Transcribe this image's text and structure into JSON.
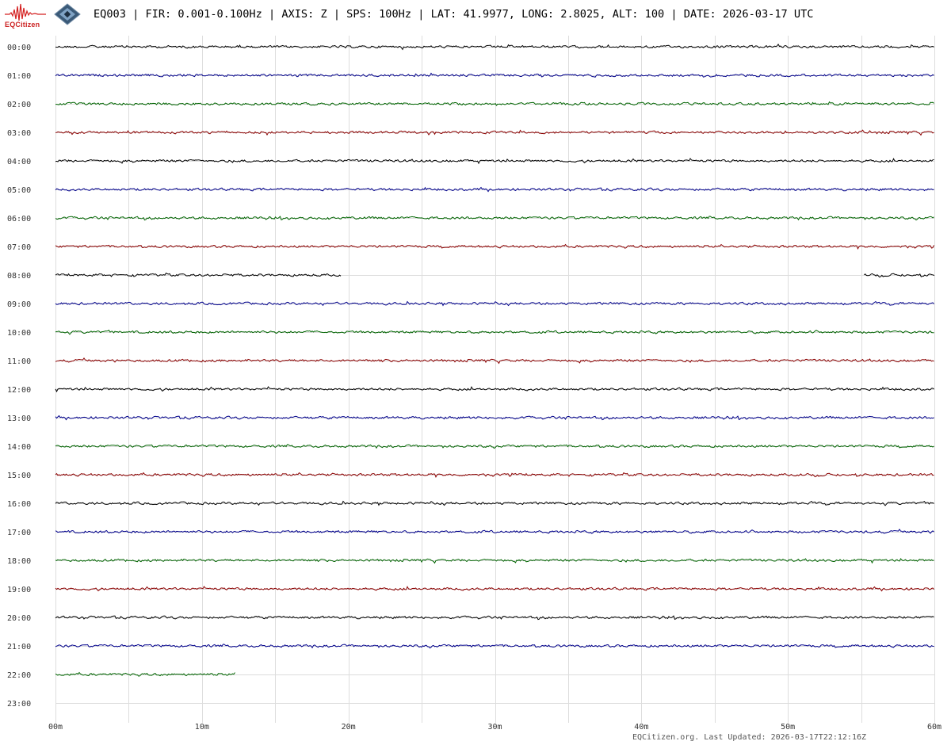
{
  "header": {
    "logo_text": "EQCitizen",
    "title": "EQ003 | FIR: 0.001-0.100Hz | AXIS: Z | SPS: 100Hz | LAT: 41.9977, LONG: 2.8025, ALT: 100 | DATE: 2026-03-17 UTC"
  },
  "footer": {
    "text": "EQCitizen.org. Last Updated: 2026-03-17T22:12:16Z"
  },
  "colors": {
    "cycle": [
      "#000000",
      "#00008b",
      "#006400",
      "#8b0000"
    ],
    "grid": "#dddddd",
    "label": "#333333"
  },
  "chart_data": {
    "type": "line",
    "description_kind": "helicorder",
    "x_ticks": [
      "00m",
      "10m",
      "20m",
      "30m",
      "40m",
      "50m",
      "60m"
    ],
    "xlim": [
      0,
      60
    ],
    "grid": true,
    "rows": [
      {
        "label": "00:00",
        "segments": [
          [
            0,
            60
          ]
        ]
      },
      {
        "label": "01:00",
        "segments": [
          [
            0,
            60
          ]
        ]
      },
      {
        "label": "02:00",
        "segments": [
          [
            0,
            60
          ]
        ]
      },
      {
        "label": "03:00",
        "segments": [
          [
            0,
            60
          ]
        ]
      },
      {
        "label": "04:00",
        "segments": [
          [
            0,
            60
          ]
        ]
      },
      {
        "label": "05:00",
        "segments": [
          [
            0,
            60
          ]
        ]
      },
      {
        "label": "06:00",
        "segments": [
          [
            0,
            60
          ]
        ]
      },
      {
        "label": "07:00",
        "segments": [
          [
            0,
            60
          ]
        ]
      },
      {
        "label": "08:00",
        "segments": [
          [
            0,
            19.5
          ],
          [
            55.2,
            60
          ]
        ]
      },
      {
        "label": "09:00",
        "segments": [
          [
            0,
            60
          ]
        ]
      },
      {
        "label": "10:00",
        "segments": [
          [
            0,
            60
          ]
        ]
      },
      {
        "label": "11:00",
        "segments": [
          [
            0,
            60
          ]
        ]
      },
      {
        "label": "12:00",
        "segments": [
          [
            0,
            60
          ]
        ]
      },
      {
        "label": "13:00",
        "segments": [
          [
            0,
            60
          ]
        ]
      },
      {
        "label": "14:00",
        "segments": [
          [
            0,
            60
          ]
        ]
      },
      {
        "label": "15:00",
        "segments": [
          [
            0,
            60
          ]
        ]
      },
      {
        "label": "16:00",
        "segments": [
          [
            0,
            60
          ]
        ]
      },
      {
        "label": "17:00",
        "segments": [
          [
            0,
            60
          ]
        ]
      },
      {
        "label": "18:00",
        "segments": [
          [
            0,
            60
          ]
        ]
      },
      {
        "label": "19:00",
        "segments": [
          [
            0,
            60
          ]
        ]
      },
      {
        "label": "20:00",
        "segments": [
          [
            0,
            60
          ]
        ]
      },
      {
        "label": "21:00",
        "segments": [
          [
            0,
            60
          ]
        ]
      },
      {
        "label": "22:00",
        "segments": [
          [
            0,
            12.3
          ]
        ]
      },
      {
        "label": "23:00",
        "segments": []
      }
    ]
  }
}
